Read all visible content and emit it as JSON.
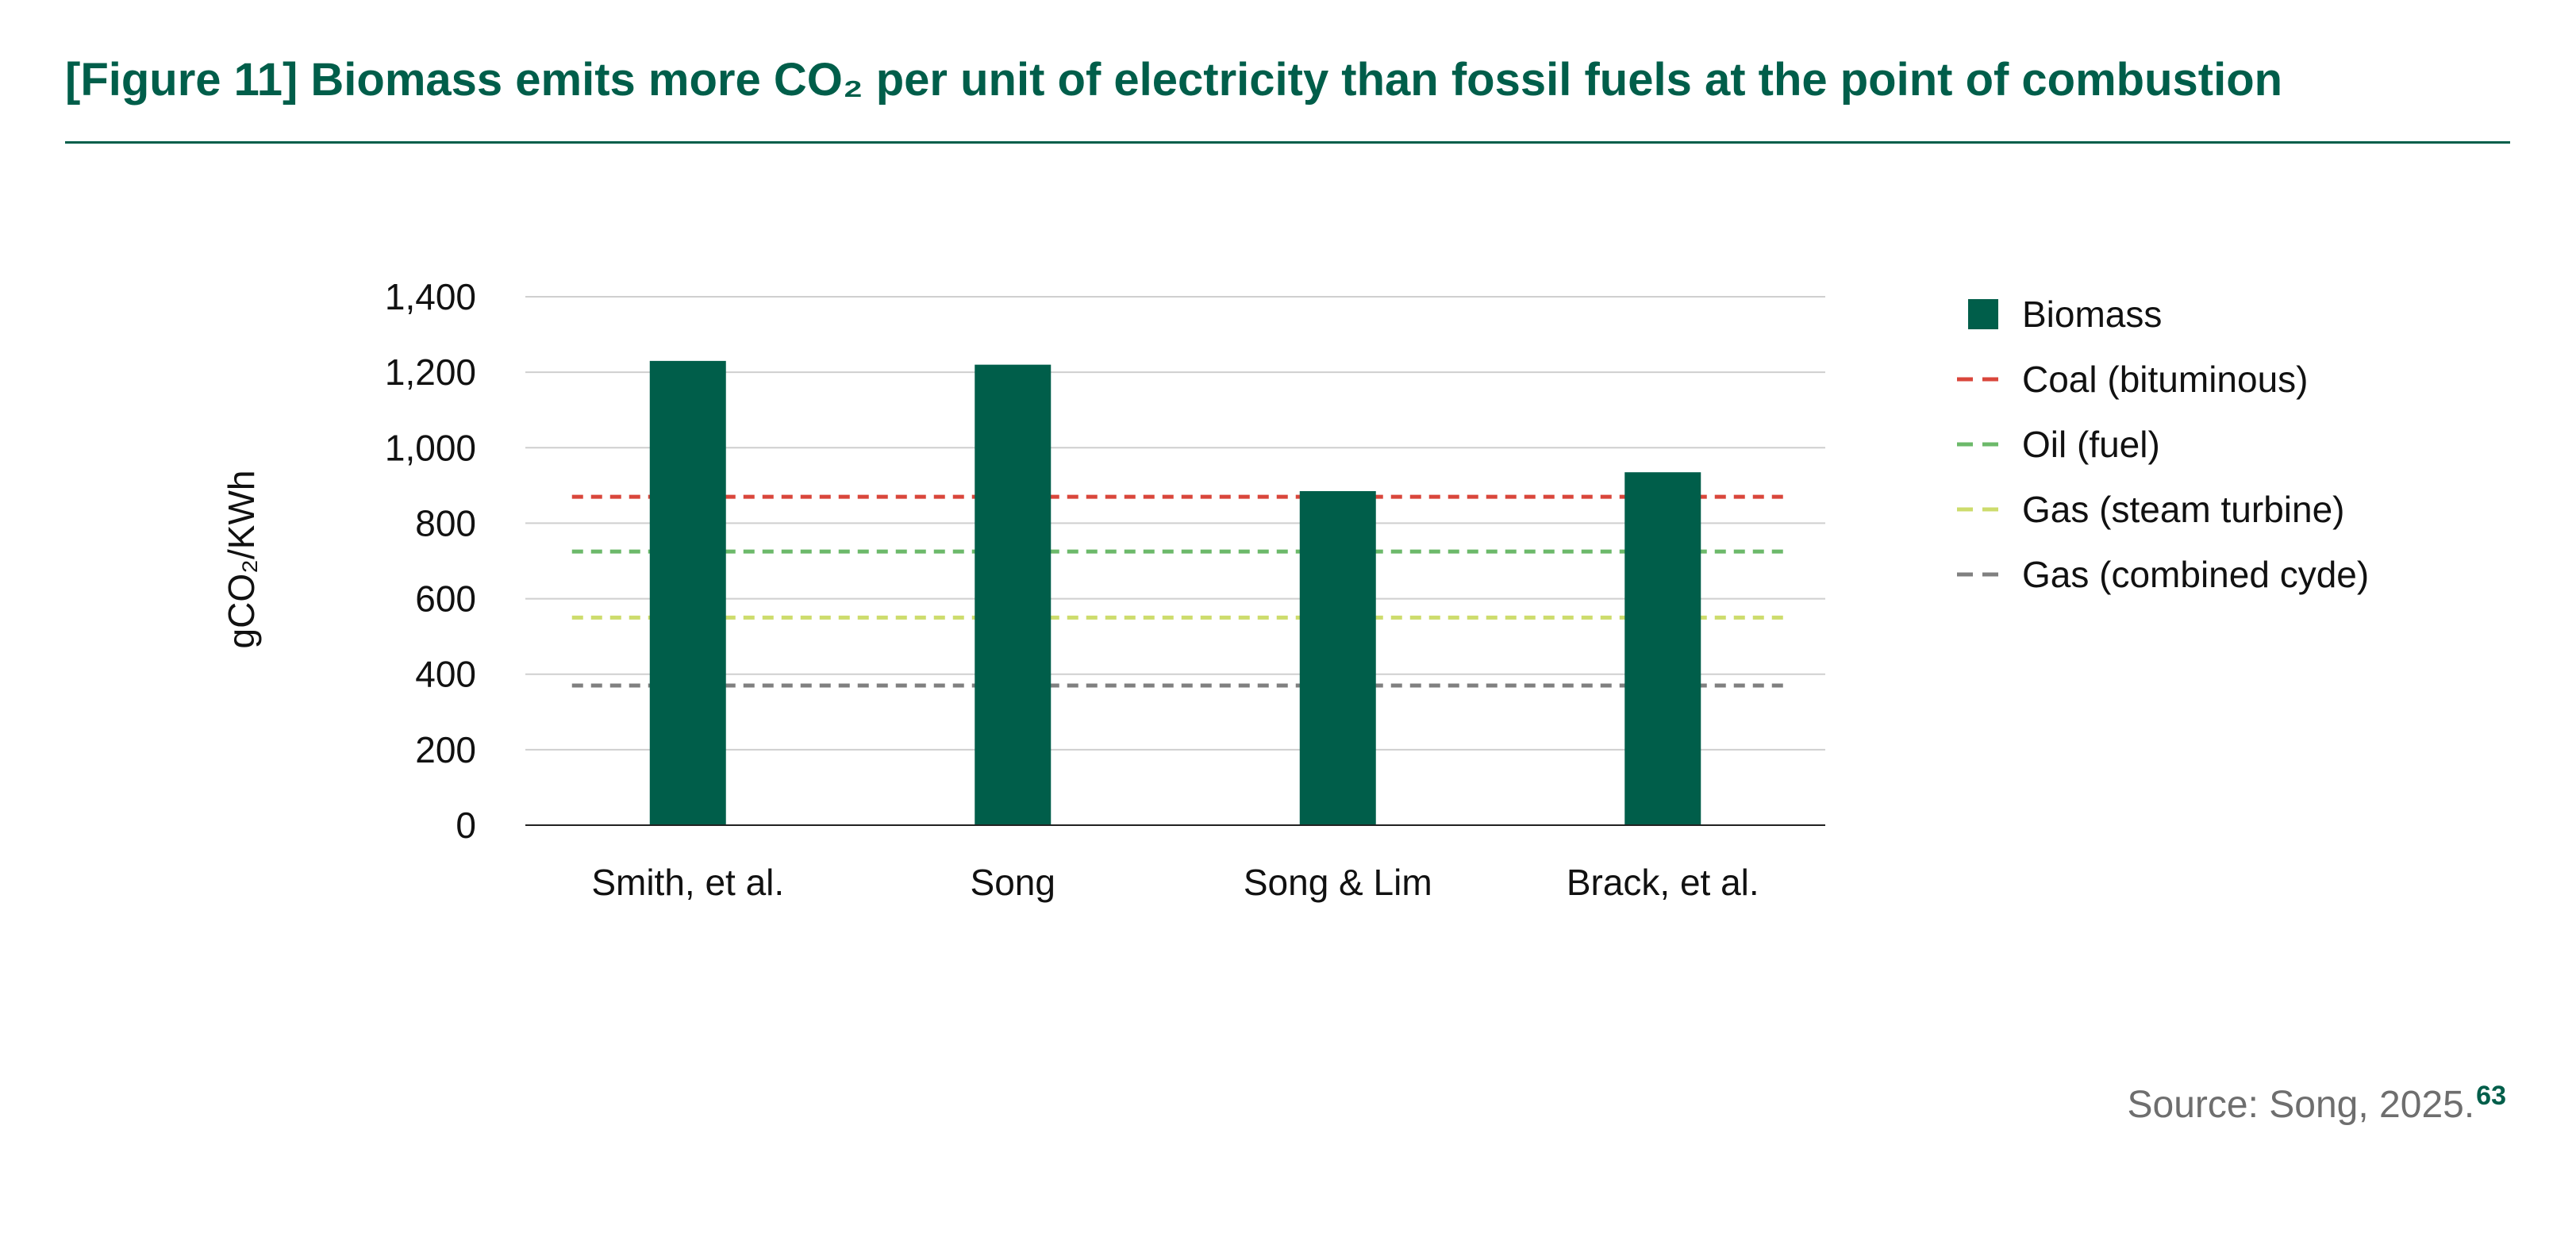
{
  "figure": {
    "title": "[Figure 11] Biomass emits more CO₂ per unit of electricity than fossil fuels at the point of combustion",
    "source_text": "Source: Song, 2025.",
    "source_ref": "63"
  },
  "colors": {
    "brand_green": "#005e4a",
    "axis": "#222222",
    "gridline": "#cfcfcf",
    "text": "#111111",
    "source_text": "#6e6e6e"
  },
  "chart_data": {
    "type": "bar",
    "title": "",
    "xlabel": "",
    "ylabel": "gCO₂/KWh",
    "ylim": [
      0,
      1400
    ],
    "ytick_step": 200,
    "gridlines": true,
    "legend_position": "right",
    "categories": [
      "Smith, et al.",
      "Song",
      "Song & Lim",
      "Brack, et al."
    ],
    "series": [
      {
        "name": "Biomass",
        "kind": "bar",
        "color": "#005e4a",
        "values": [
          1230,
          1220,
          885,
          935
        ]
      }
    ],
    "reference_lines": [
      {
        "name": "Coal (bituminous)",
        "value": 870,
        "color": "#d9463b",
        "style": "dashed"
      },
      {
        "name": "Oil (fuel)",
        "value": 725,
        "color": "#6cb96a",
        "style": "dashed"
      },
      {
        "name": "Gas (steam turbine)",
        "value": 550,
        "color": "#cddc6c",
        "style": "dashed"
      },
      {
        "name": "Gas (combined cyde)",
        "value": 370,
        "color": "#808080",
        "style": "dashed"
      }
    ]
  }
}
